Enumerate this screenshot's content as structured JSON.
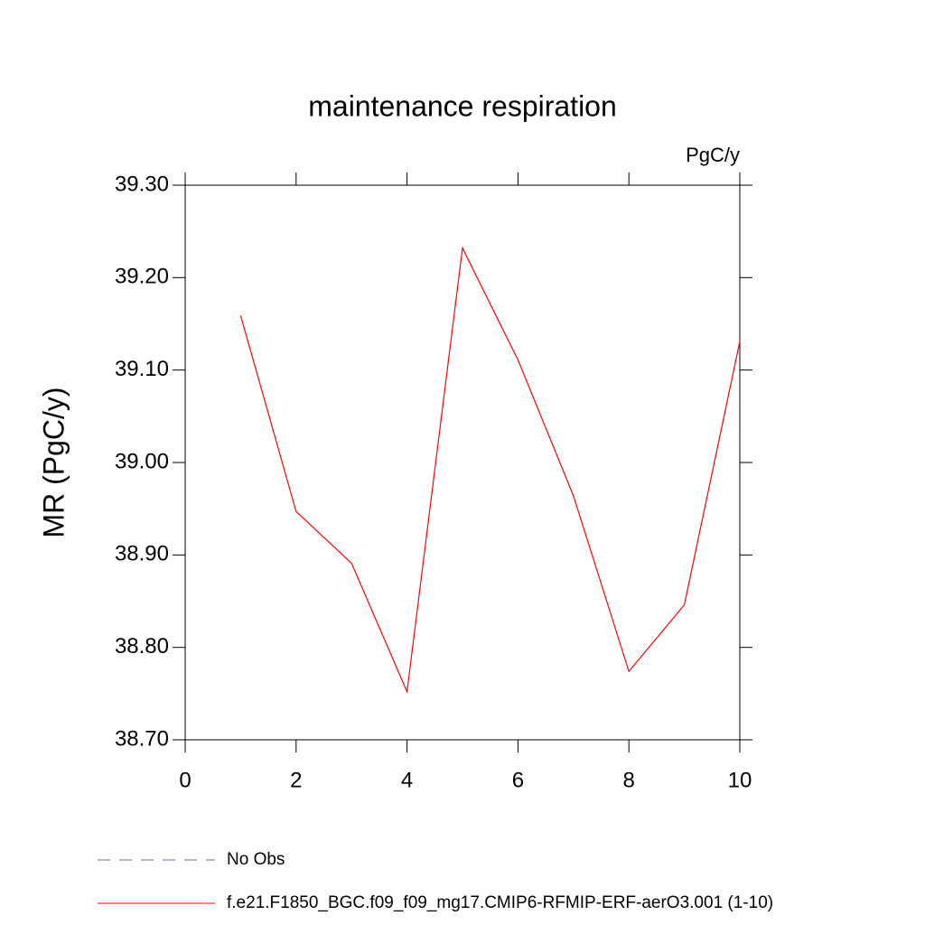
{
  "chart_data": {
    "type": "line",
    "title": "maintenance respiration",
    "units": "PgC/y",
    "y_label": "MR  (PgC/y)",
    "x": [
      1,
      2,
      3,
      4,
      5,
      6,
      7,
      8,
      9,
      10
    ],
    "series": [
      {
        "name": "No Obs",
        "color": "#7b68b0",
        "dash": "dashed",
        "values": [
          null,
          null,
          null,
          null,
          null,
          null,
          null,
          null,
          null,
          null
        ]
      },
      {
        "name": "f.e21.F1850_BGC.f09_f09_mg17.CMIP6-RFMIP-ERF-aerO3.001 (1-10)",
        "color": "#ff0000",
        "dash": "solid",
        "values": [
          39.159,
          38.947,
          38.891,
          38.752,
          39.232,
          39.111,
          38.964,
          38.774,
          38.846,
          39.131
        ]
      }
    ],
    "xlim": [
      0,
      10
    ],
    "xticks": [
      0,
      2,
      4,
      6,
      8,
      10
    ],
    "ylim": [
      38.7,
      39.3
    ],
    "yticks": [
      {
        "value": 38.7,
        "label": "38.70"
      },
      {
        "value": 38.8,
        "label": "38.80"
      },
      {
        "value": 38.9,
        "label": "38.90"
      },
      {
        "value": 39.0,
        "label": "39.00"
      },
      {
        "value": 39.1,
        "label": "39.10"
      },
      {
        "value": 39.2,
        "label": "39.20"
      },
      {
        "value": 39.3,
        "label": "39.30"
      }
    ],
    "grid": false
  }
}
